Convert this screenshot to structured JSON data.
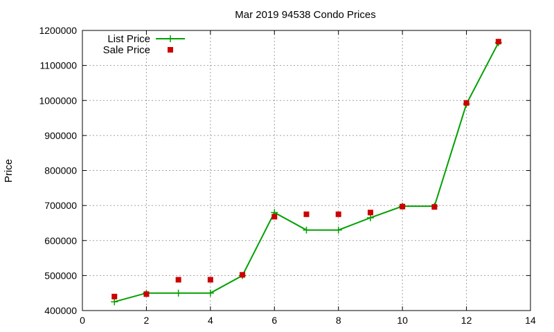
{
  "chart_data": {
    "type": "line",
    "title": "Mar 2019 94538 Condo Prices",
    "xlabel": "",
    "ylabel": "Price",
    "xlim": [
      0,
      14
    ],
    "ylim": [
      400000,
      1200000
    ],
    "x_ticks": [
      0,
      2,
      4,
      6,
      8,
      10,
      12,
      14
    ],
    "y_ticks": [
      400000,
      500000,
      600000,
      700000,
      800000,
      900000,
      1000000,
      1100000,
      1200000
    ],
    "grid": true,
    "legend_position": "top-left",
    "series": [
      {
        "name": "List Price",
        "style": "line-plus",
        "color": "#00a000",
        "x": [
          1,
          2,
          3,
          4,
          5,
          6,
          7,
          8,
          9,
          10,
          11,
          12,
          13
        ],
        "y": [
          425000,
          450000,
          450000,
          450000,
          500000,
          680000,
          630000,
          630000,
          665000,
          698000,
          698000,
          990000,
          1165000
        ]
      },
      {
        "name": "Sale Price",
        "style": "square",
        "color": "#cc0000",
        "x": [
          1,
          2,
          3,
          4,
          5,
          6,
          7,
          8,
          9,
          10,
          11,
          12,
          13
        ],
        "y": [
          440000,
          447000,
          488000,
          488000,
          502000,
          668000,
          675000,
          675000,
          680000,
          697000,
          696000,
          993000,
          1168000
        ]
      }
    ]
  }
}
